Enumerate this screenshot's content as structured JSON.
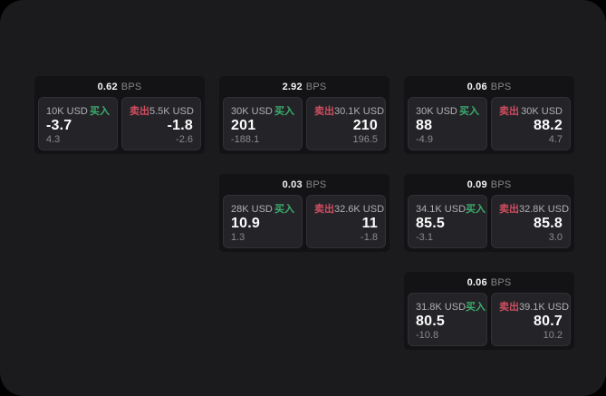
{
  "page": {
    "background": "#000000",
    "surface_color": "#1b1b1d"
  },
  "labels": {
    "bps": "BPS",
    "buy": "买入",
    "sell": "卖出"
  },
  "colors": {
    "buy": "#3dab6d",
    "sell": "#cf4d5f"
  },
  "cards": [
    {
      "bps": "0.62",
      "buy": {
        "notional": "10K USD",
        "value": "-3.7",
        "delta": "4.3"
      },
      "sell": {
        "notional": "5.5K USD",
        "value": "-1.8",
        "delta": "-2.6"
      }
    },
    {
      "bps": "2.92",
      "buy": {
        "notional": "30K USD",
        "value": "201",
        "delta": "-188.1"
      },
      "sell": {
        "notional": "30.1K USD",
        "value": "210",
        "delta": "196.5"
      }
    },
    {
      "bps": "0.06",
      "buy": {
        "notional": "30K USD",
        "value": "88",
        "delta": "-4.9"
      },
      "sell": {
        "notional": "30K USD",
        "value": "88.2",
        "delta": "4.7"
      }
    },
    {
      "bps": "0.03",
      "buy": {
        "notional": "28K USD",
        "value": "10.9",
        "delta": "1.3"
      },
      "sell": {
        "notional": "32.6K USD",
        "value": "11",
        "delta": "-1.8"
      }
    },
    {
      "bps": "0.09",
      "buy": {
        "notional": "34.1K USD",
        "value": "85.5",
        "delta": "-3.1"
      },
      "sell": {
        "notional": "32.8K USD",
        "value": "85.8",
        "delta": "3.0"
      }
    },
    {
      "bps": "0.06",
      "buy": {
        "notional": "31.8K USD",
        "value": "80.5",
        "delta": "-10.8"
      },
      "sell": {
        "notional": "39.1K USD",
        "value": "80.7",
        "delta": "10.2"
      }
    }
  ]
}
